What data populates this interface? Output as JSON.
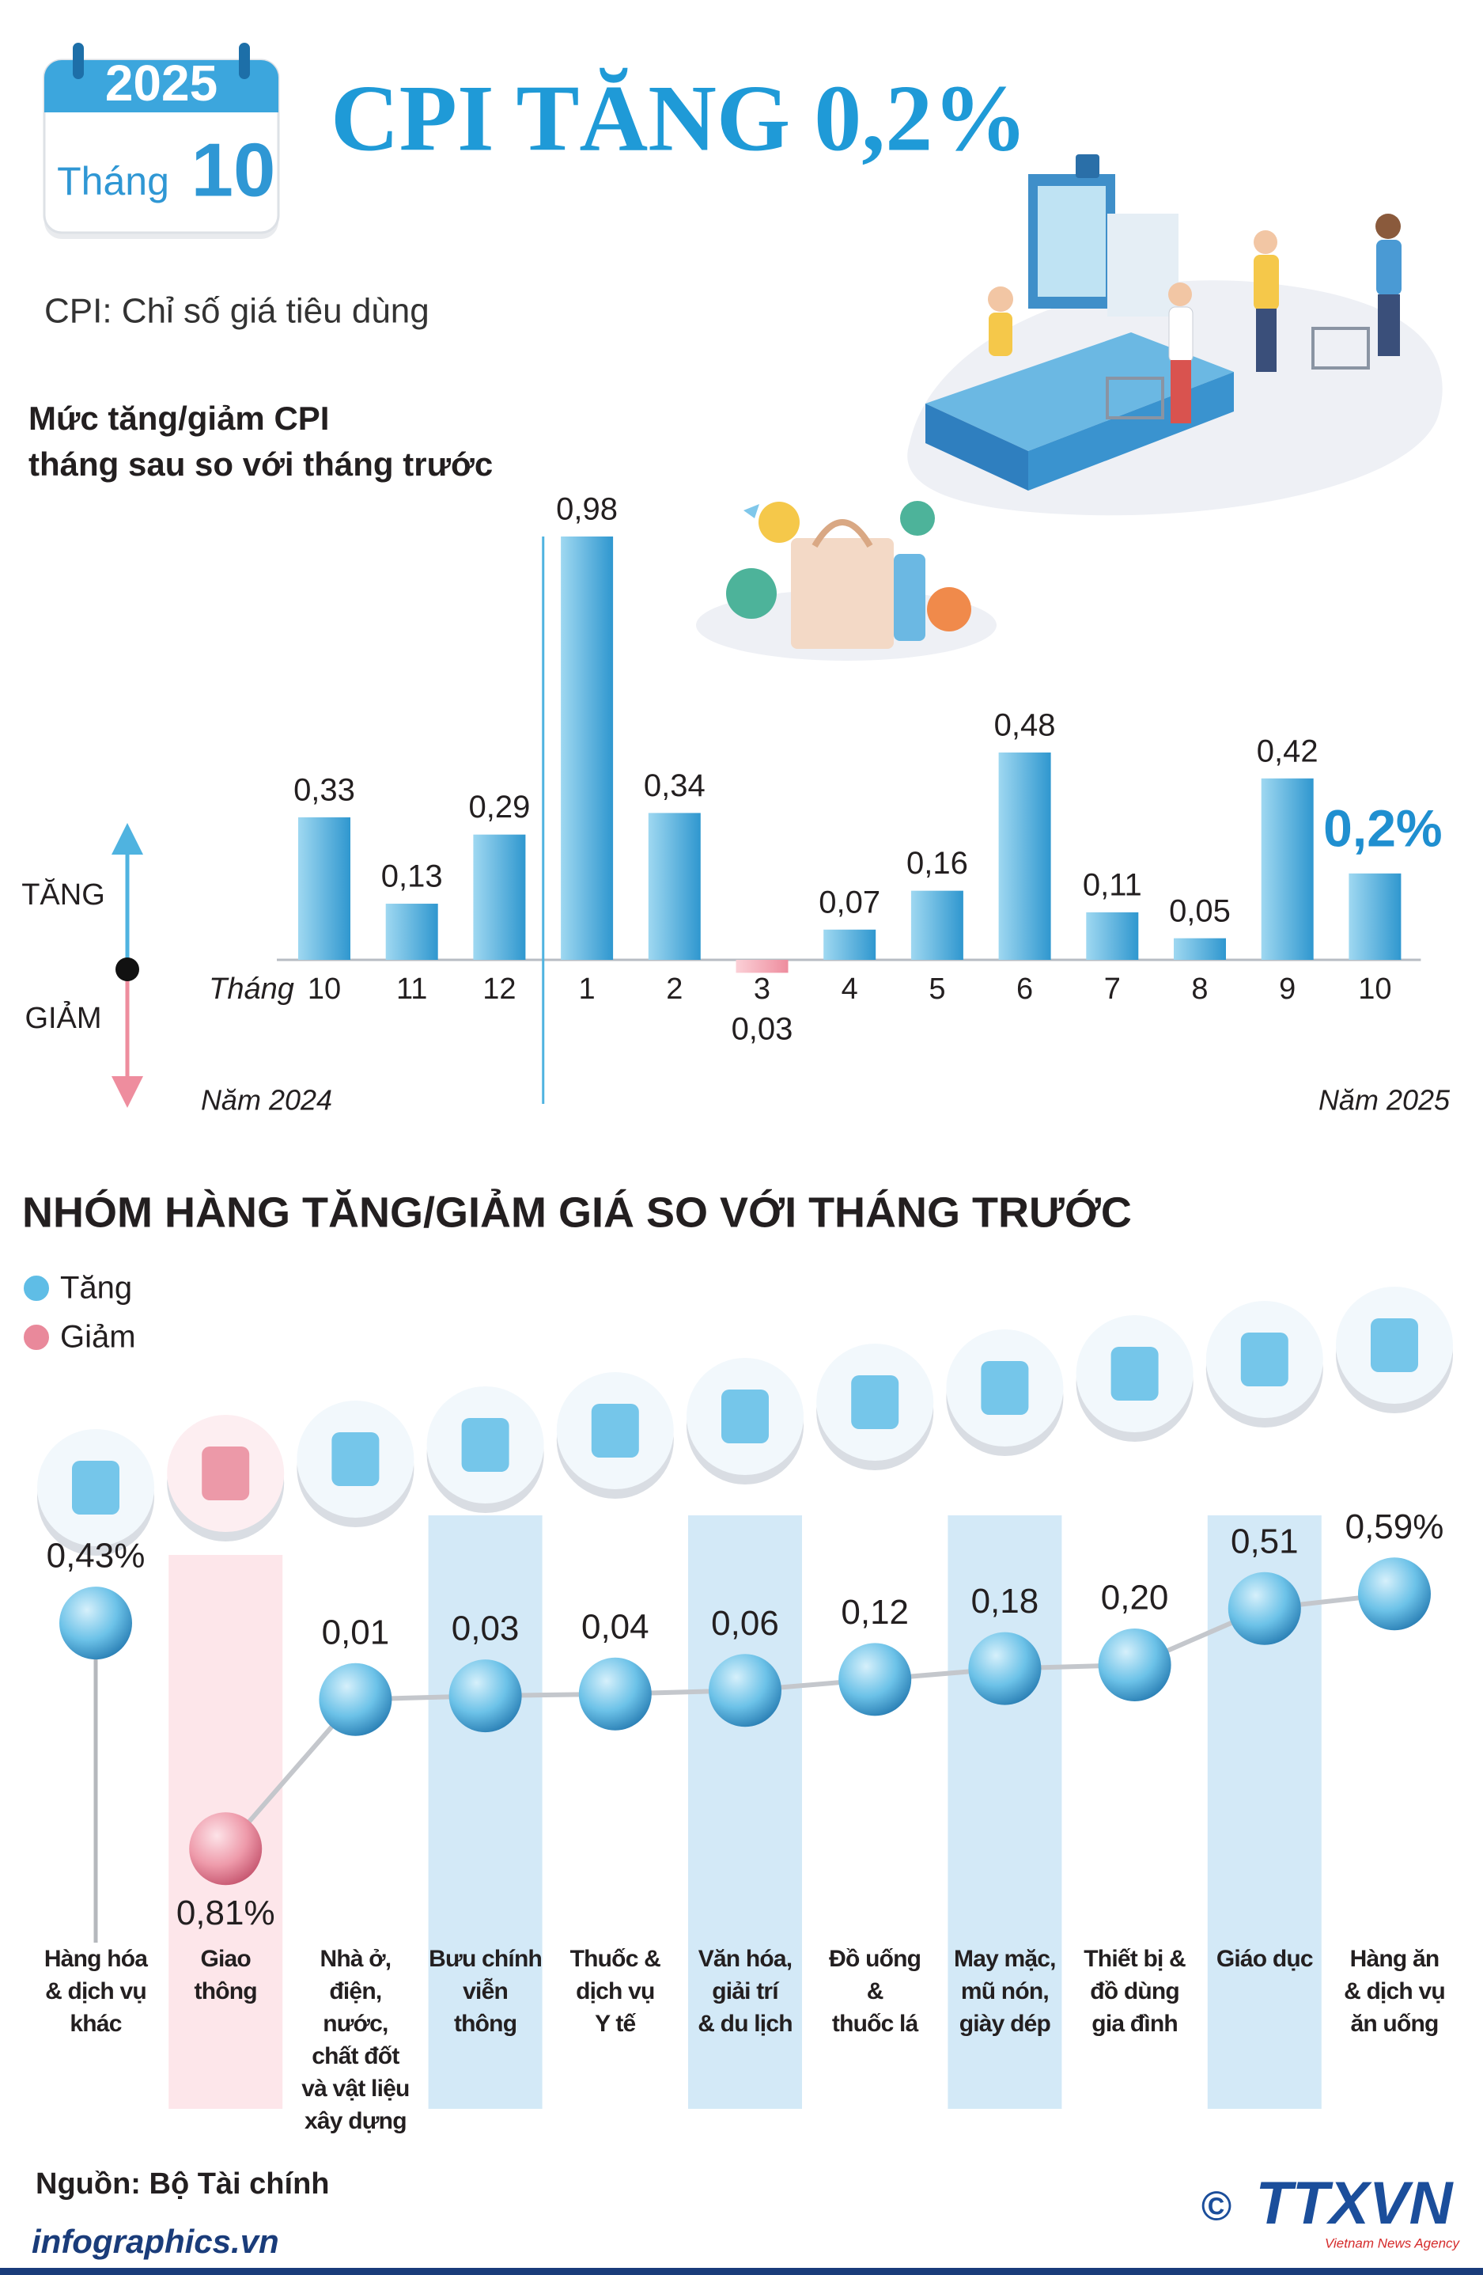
{
  "header": {
    "year": "2025",
    "month_label": "Tháng",
    "month": "10",
    "title": "CPI TĂNG 0,2%",
    "subtitle": "CPI: Chỉ số giá tiêu dùng"
  },
  "chart_data": [
    {
      "type": "bar",
      "title": "Mức tăng/giảm CPI\ntháng sau so với tháng trước",
      "x_label": "Tháng",
      "direction_labels": [
        "TĂNG",
        "GIẢM"
      ],
      "period_labels": [
        "Năm 2024",
        "Năm 2025"
      ],
      "categories": [
        "10",
        "11",
        "12",
        "1",
        "2",
        "3",
        "4",
        "5",
        "6",
        "7",
        "8",
        "9",
        "10"
      ],
      "values": [
        0.33,
        0.13,
        0.29,
        0.98,
        0.34,
        -0.03,
        0.07,
        0.16,
        0.48,
        0.11,
        0.05,
        0.42,
        0.2
      ],
      "value_labels": [
        "0,33",
        "0,13",
        "0,29",
        "0,98",
        "0,34",
        "0,03",
        "0,07",
        "0,16",
        "0,48",
        "0,11",
        "0,05",
        "0,42",
        "0,2%"
      ],
      "colors": {
        "up": "#4fb3e0",
        "down": "#f2a3b0"
      }
    },
    {
      "type": "dot",
      "title": "NHÓM HÀNG TĂNG/GIẢM GIÁ SO VỚI THÁNG TRƯỚC",
      "legend": [
        {
          "name": "Tăng",
          "color": "#5fbde6"
        },
        {
          "name": "Giảm",
          "color": "#e9899b"
        }
      ],
      "categories": [
        "Hàng hóa\n& dịch vụ\nkhác",
        "Giao\nthông",
        "Nhà ở,\nđiện,\nnước,\nchất đốt\nvà vật liệu\nxây dựng",
        "Bưu chính\nviễn\nthông",
        "Thuốc &\ndịch vụ\nY tế",
        "Văn hóa,\ngiải trí\n& du lịch",
        "Đồ uống\n&\nthuốc lá",
        "May mặc,\nmũ nón,\ngiày dép",
        "Thiết bị &\nđồ dùng\ngia đình",
        "Giáo dục",
        "Hàng ăn\n& dịch vụ\năn uống"
      ],
      "values": [
        0.43,
        -0.81,
        0.01,
        0.03,
        0.04,
        0.06,
        0.12,
        0.18,
        0.2,
        0.51,
        0.59
      ],
      "value_labels": [
        "0,43%",
        "0,81%",
        "0,01",
        "0,03",
        "0,04",
        "0,06",
        "0,12",
        "0,18",
        "0,20",
        "0,51",
        "0,59%"
      ]
    }
  ],
  "source": "Nguồn: Bộ Tài chính",
  "footer": {
    "website": "infographics.vn",
    "logo_symbol": "©",
    "logo_name": "TTXVN",
    "logo_tagline": "Vietnam News Agency"
  }
}
